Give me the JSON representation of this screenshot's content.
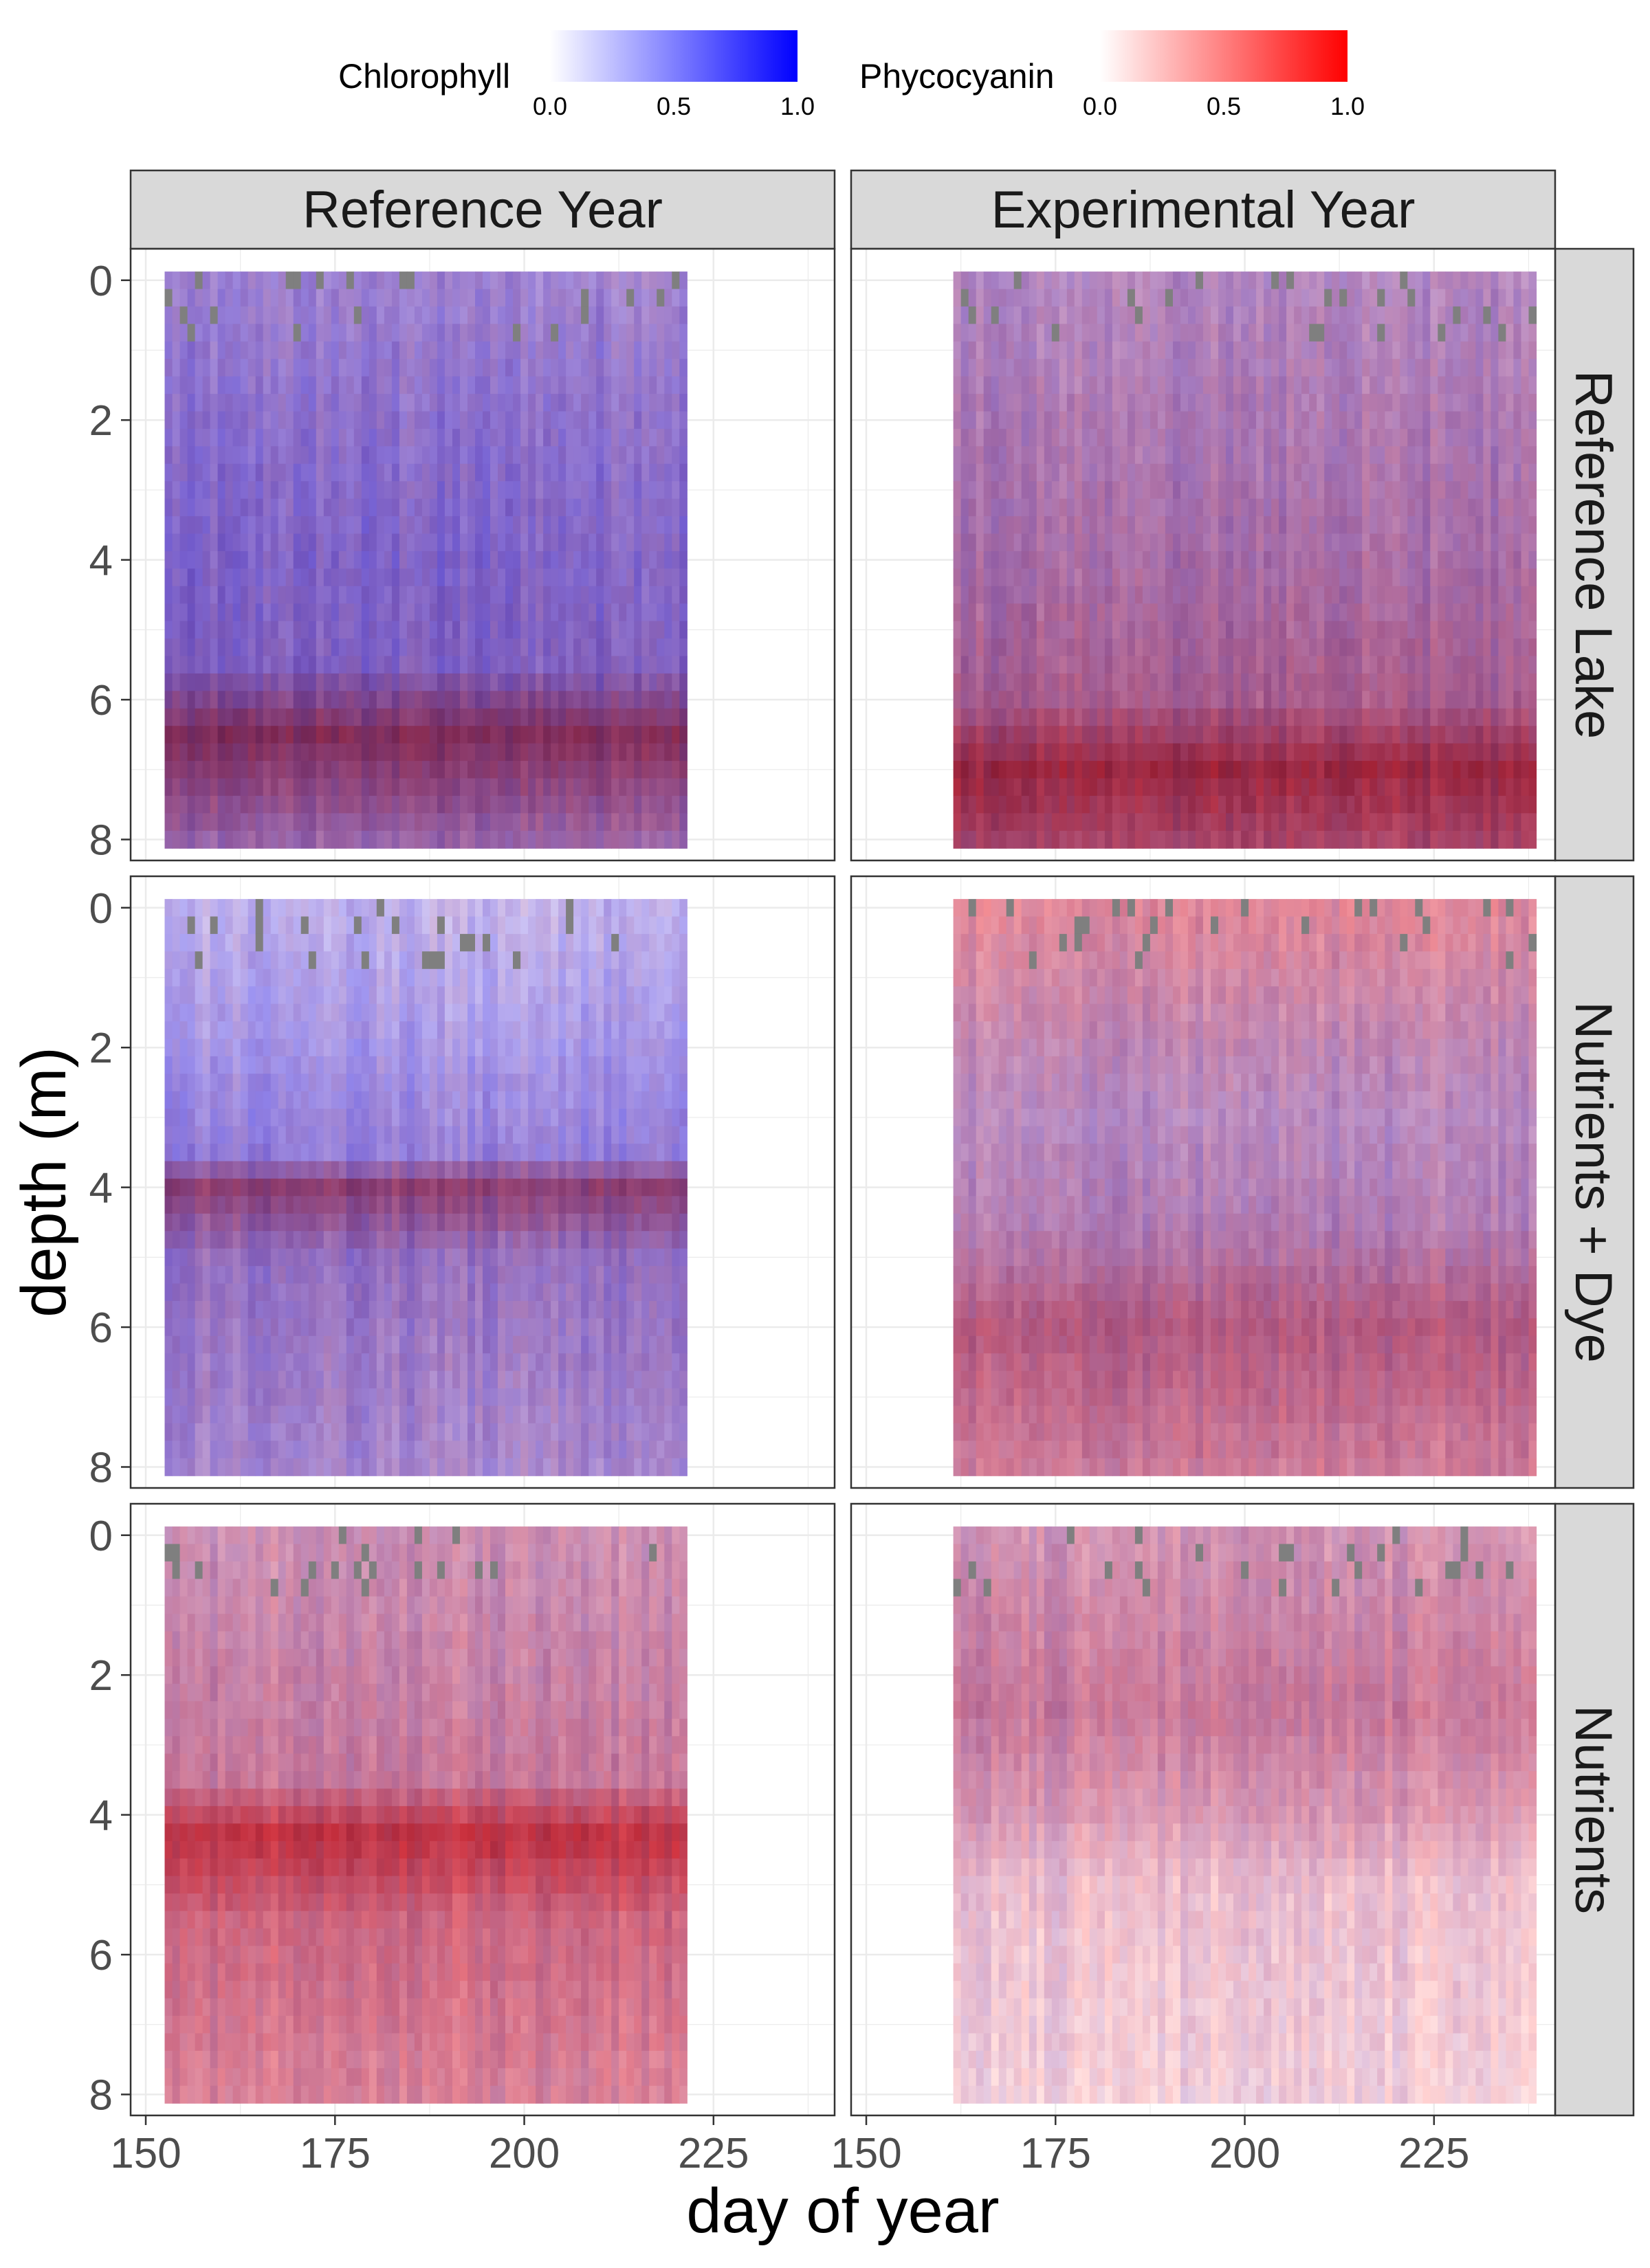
{
  "chart_data": {
    "type": "heatmap",
    "xlabel": "day of year",
    "ylabel": "depth (m)",
    "x_ticks": [
      150,
      175,
      200,
      225
    ],
    "x_tick_labels": [
      "150",
      "175",
      "200",
      "225"
    ],
    "xlim": [
      148,
      241
    ],
    "y_ticks": [
      0,
      2,
      4,
      6,
      8
    ],
    "y_tick_labels": [
      "0",
      "2",
      "4",
      "6",
      "8"
    ],
    "ylim": [
      8.3,
      -0.45
    ],
    "y_reversed": true,
    "grid": true,
    "legend_position": "top",
    "legends": [
      {
        "name": "Chlorophyll",
        "low_color": "#ffffff",
        "high_color": "#0000ff",
        "range": [
          0,
          1
        ],
        "ticks": [
          "0.0",
          "0.5",
          "1.0"
        ]
      },
      {
        "name": "Phycocyanin",
        "low_color": "#ffffff",
        "high_color": "#ff0000",
        "range": [
          0,
          1
        ],
        "ticks": [
          "0.0",
          "0.5",
          "1.0"
        ]
      }
    ],
    "columns": [
      "Reference Year",
      "Experimental Year"
    ],
    "rows": [
      "Reference Lake",
      "Nutrients + Dye",
      "Nutrients"
    ],
    "missing_color": "#7f7f7f",
    "panels": [
      {
        "row": "Reference Lake",
        "column": "Reference Year",
        "day_range": [
          153,
          221
        ],
        "profile": [
          {
            "depth": 0,
            "chl": 0.38,
            "pc": 0.18
          },
          {
            "depth": 2,
            "chl": 0.45,
            "pc": 0.2
          },
          {
            "depth": 4,
            "chl": 0.5,
            "pc": 0.22
          },
          {
            "depth": 5.5,
            "chl": 0.5,
            "pc": 0.25
          },
          {
            "depth": 6.5,
            "chl": 0.5,
            "pc": 0.65
          },
          {
            "depth": 8,
            "chl": 0.4,
            "pc": 0.35
          }
        ]
      },
      {
        "row": "Reference Lake",
        "column": "Experimental Year",
        "day_range": [
          162,
          238
        ],
        "profile": [
          {
            "depth": 0,
            "chl": 0.3,
            "pc": 0.25
          },
          {
            "depth": 2,
            "chl": 0.33,
            "pc": 0.3
          },
          {
            "depth": 4,
            "chl": 0.35,
            "pc": 0.35
          },
          {
            "depth": 6,
            "chl": 0.35,
            "pc": 0.45
          },
          {
            "depth": 7,
            "chl": 0.4,
            "pc": 0.75
          },
          {
            "depth": 8,
            "chl": 0.35,
            "pc": 0.6
          }
        ]
      },
      {
        "row": "Nutrients + Dye",
        "column": "Reference Year",
        "day_range": [
          153,
          221
        ],
        "profile": [
          {
            "depth": 0,
            "chl": 0.25,
            "pc": 0.08
          },
          {
            "depth": 2,
            "chl": 0.35,
            "pc": 0.1
          },
          {
            "depth": 3.5,
            "chl": 0.42,
            "pc": 0.15
          },
          {
            "depth": 4,
            "chl": 0.45,
            "pc": 0.55
          },
          {
            "depth": 5,
            "chl": 0.42,
            "pc": 0.25
          },
          {
            "depth": 8,
            "chl": 0.35,
            "pc": 0.2
          }
        ]
      },
      {
        "row": "Nutrients + Dye",
        "column": "Experimental Year",
        "day_range": [
          162,
          238
        ],
        "profile": [
          {
            "depth": 0,
            "chl": 0.12,
            "pc": 0.4
          },
          {
            "depth": 2,
            "chl": 0.25,
            "pc": 0.3
          },
          {
            "depth": 3,
            "chl": 0.28,
            "pc": 0.25
          },
          {
            "depth": 4.5,
            "chl": 0.3,
            "pc": 0.3
          },
          {
            "depth": 6,
            "chl": 0.3,
            "pc": 0.5
          },
          {
            "depth": 8,
            "chl": 0.2,
            "pc": 0.4
          }
        ]
      },
      {
        "row": "Nutrients",
        "column": "Reference Year",
        "day_range": [
          153,
          221
        ],
        "profile": [
          {
            "depth": 0,
            "chl": 0.2,
            "pc": 0.3
          },
          {
            "depth": 2,
            "chl": 0.22,
            "pc": 0.35
          },
          {
            "depth": 3.5,
            "chl": 0.22,
            "pc": 0.4
          },
          {
            "depth": 4.3,
            "chl": 0.25,
            "pc": 0.75
          },
          {
            "depth": 5.5,
            "chl": 0.2,
            "pc": 0.5
          },
          {
            "depth": 8,
            "chl": 0.15,
            "pc": 0.4
          }
        ]
      },
      {
        "row": "Nutrients",
        "column": "Experimental Year",
        "day_range": [
          162,
          238
        ],
        "profile": [
          {
            "depth": 0,
            "chl": 0.18,
            "pc": 0.3
          },
          {
            "depth": 2.5,
            "chl": 0.22,
            "pc": 0.4
          },
          {
            "depth": 4,
            "chl": 0.15,
            "pc": 0.3
          },
          {
            "depth": 5,
            "chl": 0.08,
            "pc": 0.2
          },
          {
            "depth": 8,
            "chl": 0.05,
            "pc": 0.15
          }
        ]
      }
    ]
  }
}
